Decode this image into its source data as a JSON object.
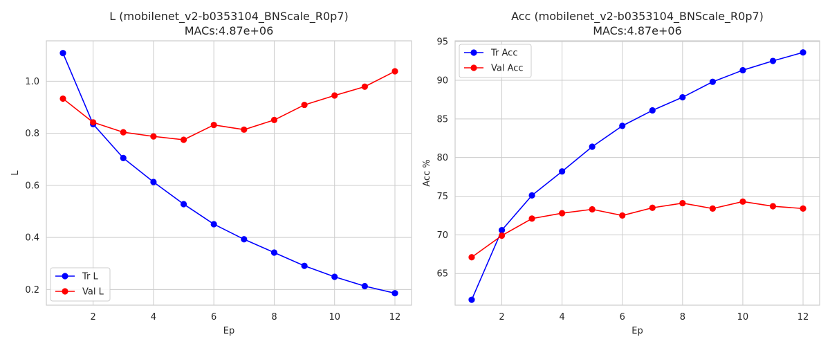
{
  "chart_data": [
    {
      "type": "line",
      "title_line1": "L (mobilenet_v2-b0353104_BNScale_R0p7)",
      "title_line2": "MACs:4.87e+06",
      "xlabel": "Ep",
      "ylabel": "L",
      "x": [
        1,
        2,
        3,
        4,
        5,
        6,
        7,
        8,
        9,
        10,
        11,
        12
      ],
      "xlim": [
        0.45,
        12.55
      ],
      "ylim": [
        0.14,
        1.155
      ],
      "xticks": [
        2,
        4,
        6,
        8,
        10,
        12
      ],
      "yticks": [
        0.2,
        0.4,
        0.6,
        0.8,
        1.0
      ],
      "ytick_labels": [
        "0.2",
        "0.4",
        "0.6",
        "0.8",
        "1.0"
      ],
      "grid": true,
      "legend_position": "lower left",
      "series": [
        {
          "name": "Tr L",
          "color": "#0000ff",
          "values": [
            1.108,
            0.835,
            0.705,
            0.613,
            0.528,
            0.451,
            0.393,
            0.342,
            0.291,
            0.249,
            0.213,
            0.186
          ]
        },
        {
          "name": "Val L",
          "color": "#ff0000",
          "values": [
            0.933,
            0.842,
            0.804,
            0.788,
            0.775,
            0.832,
            0.814,
            0.851,
            0.909,
            0.945,
            0.979,
            1.038
          ]
        }
      ]
    },
    {
      "type": "line",
      "title_line1": "Acc (mobilenet_v2-b0353104_BNScale_R0p7)",
      "title_line2": "MACs:4.87e+06",
      "xlabel": "Ep",
      "ylabel": "Acc %",
      "x": [
        1,
        2,
        3,
        4,
        5,
        6,
        7,
        8,
        9,
        10,
        11,
        12
      ],
      "xlim": [
        0.45,
        12.55
      ],
      "ylim": [
        60.9,
        95.1
      ],
      "xticks": [
        2,
        4,
        6,
        8,
        10,
        12
      ],
      "yticks": [
        65,
        70,
        75,
        80,
        85,
        90,
        95
      ],
      "ytick_labels": [
        "65",
        "70",
        "75",
        "80",
        "85",
        "90",
        "95"
      ],
      "grid": true,
      "legend_position": "upper left",
      "series": [
        {
          "name": "Tr Acc",
          "color": "#0000ff",
          "values": [
            61.6,
            70.6,
            75.1,
            78.2,
            81.4,
            84.1,
            86.1,
            87.8,
            89.8,
            91.3,
            92.5,
            93.6
          ]
        },
        {
          "name": "Val Acc",
          "color": "#ff0000",
          "values": [
            67.1,
            69.9,
            72.1,
            72.8,
            73.3,
            72.5,
            73.5,
            74.1,
            73.4,
            74.3,
            73.7,
            73.4
          ]
        }
      ]
    }
  ]
}
